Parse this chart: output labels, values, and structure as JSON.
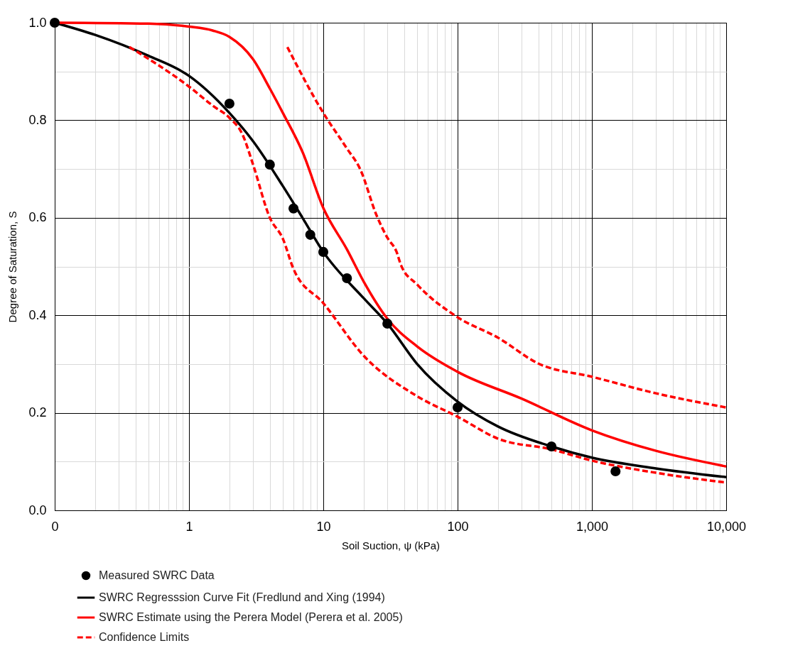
{
  "chart_data": {
    "type": "line",
    "xlabel": "Soil Suction, ψ (kPa)",
    "ylabel": "Degree of Saturation, S",
    "log": "x",
    "grid": true,
    "legend": "bottom",
    "xlim": [
      0.1,
      10000
    ],
    "xticks": [
      {
        "value": 0.1,
        "label": "0"
      },
      1,
      10,
      100,
      {
        "value": 1000,
        "label": "1,000"
      },
      {
        "value": 10000,
        "label": "10,000"
      }
    ],
    "ylim": [
      0,
      1
    ],
    "yticks": [
      {
        "value": 0,
        "label": "0.0"
      },
      0.2,
      0.4,
      0.6,
      0.8,
      {
        "value": 1,
        "label": "1.0"
      }
    ],
    "series": [
      {
        "name": "Measured SWRC Data",
        "type": "scatter",
        "marker": "circle",
        "color": "#000000",
        "x": [
          0.1,
          2,
          4,
          6,
          8,
          10,
          15,
          30,
          100,
          500,
          1500
        ],
        "values": [
          1.0,
          0.834,
          0.709,
          0.619,
          0.565,
          0.53,
          0.476,
          0.383,
          0.211,
          0.131,
          0.08
        ]
      },
      {
        "name": "SWRC Regresssion Curve Fit (Fredlund and Xing (1994)",
        "type": "line",
        "color": "#000000",
        "line_style": "solid",
        "x": [
          0.1,
          0.2,
          0.5,
          1,
          2,
          3,
          5,
          7,
          10,
          20,
          30,
          50,
          100,
          200,
          500,
          1000,
          3000,
          10000
        ],
        "values": [
          1.0,
          0.975,
          0.932,
          0.891,
          0.815,
          0.757,
          0.665,
          0.6,
          0.53,
          0.435,
          0.383,
          0.3,
          0.223,
          0.172,
          0.131,
          0.108,
          0.086,
          0.068
        ]
      },
      {
        "name": "SWRC Estimate using the Perera Model (Perera et al. 2005)",
        "type": "line",
        "color": "#ff0000",
        "line_style": "solid",
        "x": [
          0.1,
          0.5,
          1,
          1.5,
          2,
          3,
          4,
          5,
          7,
          10,
          15,
          20,
          30,
          50,
          100,
          300,
          1000,
          3000,
          10000
        ],
        "values": [
          1.0,
          0.998,
          0.992,
          0.984,
          0.971,
          0.925,
          0.865,
          0.815,
          0.735,
          0.62,
          0.535,
          0.469,
          0.393,
          0.336,
          0.284,
          0.229,
          0.164,
          0.122,
          0.09
        ]
      },
      {
        "name": "Confidence Limits",
        "type": "line",
        "color": "#ff0000",
        "line_style": "dashed",
        "x": [
          0.36,
          1,
          1.5,
          2,
          2.5,
          3,
          4,
          5,
          6,
          10,
          20,
          50,
          100,
          200,
          500,
          1000,
          3000,
          10000
        ],
        "values": [
          0.95,
          0.869,
          0.83,
          0.805,
          0.771,
          0.709,
          0.6,
          0.557,
          0.495,
          0.425,
          0.317,
          0.234,
          0.192,
          0.147,
          0.125,
          0.102,
          0.077,
          0.057
        ]
      },
      {
        "type": "line",
        "color": "#ff0000",
        "line_style": "dashed",
        "x": [
          5.4,
          10,
          15,
          18.8,
          25,
          30,
          35,
          38,
          50,
          100,
          200,
          400,
          1000,
          3000,
          10000
        ],
        "values": [
          0.95,
          0.815,
          0.742,
          0.7,
          0.604,
          0.559,
          0.531,
          0.502,
          0.463,
          0.396,
          0.354,
          0.301,
          0.274,
          0.24,
          0.211
        ]
      }
    ]
  }
}
